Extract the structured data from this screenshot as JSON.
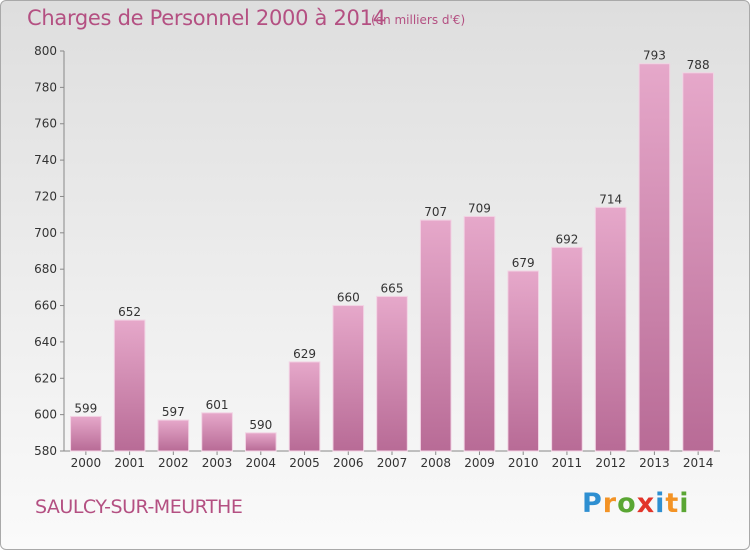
{
  "header": {
    "title": "Charges de Personnel 2000 à 2014",
    "subtitle": "(en milliers d'€)"
  },
  "footer": {
    "commune": "SAULCY-SUR-MEURTHE",
    "logo_letters": [
      "P",
      "r",
      "o",
      "x",
      "i",
      "t",
      "i"
    ],
    "logo_colors": [
      "#2e8fd1",
      "#f39325",
      "#5aa633",
      "#e2352a",
      "#2e8fd1",
      "#f39325",
      "#5aa633"
    ]
  },
  "chart_data": {
    "type": "bar",
    "title": "Charges de Personnel 2000 à 2014",
    "subtitle": "(en milliers d'€)",
    "categories": [
      "2000",
      "2001",
      "2002",
      "2003",
      "2004",
      "2005",
      "2006",
      "2007",
      "2008",
      "2009",
      "2010",
      "2011",
      "2012",
      "2013",
      "2014"
    ],
    "values": [
      599,
      652,
      597,
      601,
      590,
      629,
      660,
      665,
      707,
      709,
      679,
      692,
      714,
      793,
      788
    ],
    "ylim": [
      580,
      800
    ],
    "yticks": [
      580,
      600,
      620,
      640,
      660,
      680,
      700,
      720,
      740,
      760,
      780,
      800
    ],
    "grid": false,
    "bar_color": "#c8699e"
  }
}
